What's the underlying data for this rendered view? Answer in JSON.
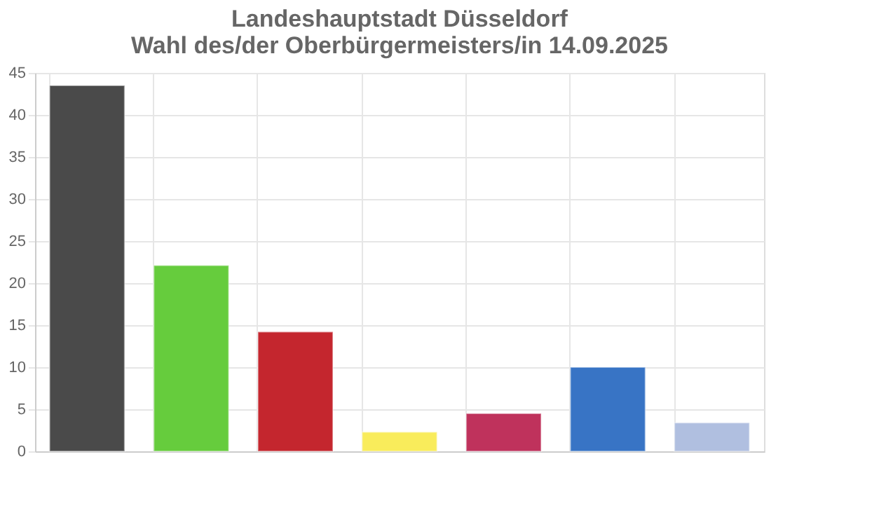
{
  "chart_data": {
    "type": "bar",
    "title": "Landeshauptstadt Düsseldorf\nWahl des/der Oberbürgermeisters/in 14.09.2025",
    "categories": [
      null,
      null,
      null,
      null,
      null,
      null,
      null
    ],
    "values": [
      43.5,
      22.1,
      14.2,
      2.3,
      4.5,
      10.0,
      3.4
    ],
    "colors": [
      "#4a4a4a",
      "#66cc3d",
      "#c4262e",
      "#f9ec5b",
      "#bf325c",
      "#3874c5",
      "#b0bfe0"
    ],
    "ylim": [
      0,
      45
    ],
    "yticks": [
      0,
      5,
      10,
      15,
      20,
      25,
      30,
      35,
      40,
      45
    ],
    "grid": true,
    "tick_labels": "y"
  }
}
